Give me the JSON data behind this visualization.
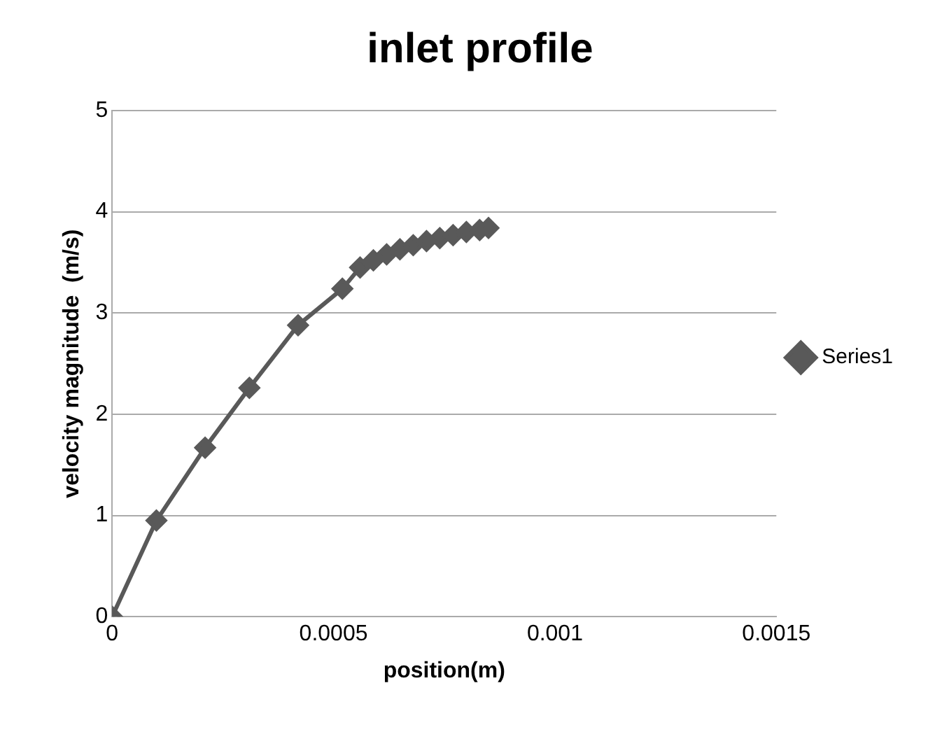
{
  "chart_data": {
    "type": "line",
    "title": "inlet profile",
    "xlabel": "position(m)",
    "ylabel": "velocity magnitude  (m/s)",
    "x": [
      0,
      0.0001,
      0.00021,
      0.00031,
      0.00042,
      0.00052,
      0.00056,
      0.00059,
      0.00062,
      0.00065,
      0.00068,
      0.00071,
      0.00074,
      0.00077,
      0.0008,
      0.00083,
      0.00085
    ],
    "series": [
      {
        "name": "Series1",
        "color": "#595959",
        "values": [
          0,
          0.95,
          1.67,
          2.26,
          2.88,
          3.24,
          3.45,
          3.52,
          3.58,
          3.63,
          3.67,
          3.71,
          3.74,
          3.77,
          3.8,
          3.82,
          3.84
        ]
      }
    ],
    "xlim": [
      0,
      0.0015
    ],
    "xticks": [
      0,
      0.0005,
      0.001,
      0.0015
    ],
    "ylim": [
      0,
      5
    ],
    "yticks": [
      0,
      1,
      2,
      3,
      4,
      5
    ],
    "grid": "y",
    "legend": "right",
    "marker": "diamond",
    "line_style": "solid"
  }
}
